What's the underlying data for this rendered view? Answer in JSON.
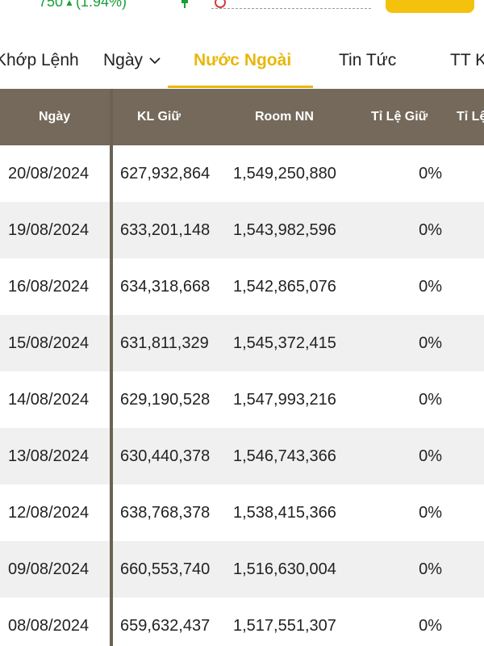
{
  "ticker_bar": {
    "price_change": "750",
    "percent_change": "(1.94%)",
    "up_icon": "triangle-up-icon",
    "colors": {
      "positive": "#1a9e3a",
      "accent": "#f4c20d",
      "header_bg": "#74695a"
    }
  },
  "tabs": [
    {
      "label": "Khớp Lệnh",
      "active": false
    },
    {
      "label": "Ngày",
      "active": false,
      "icon": "chevron-down-icon"
    },
    {
      "label": "Nước Ngoài",
      "active": true
    },
    {
      "label": "Tin Tức",
      "active": false
    },
    {
      "label": "TT K",
      "active": false
    }
  ],
  "table": {
    "columns": [
      "Ngày",
      "KL Giữ",
      "Room NN",
      "Tỉ Lệ Giữ",
      "Tỉ Lệ"
    ],
    "rows": [
      {
        "date": "20/08/2024",
        "kl_giu": "627,932,864",
        "room_nn": "1,549,250,880",
        "ti_le_giu": "0%"
      },
      {
        "date": "19/08/2024",
        "kl_giu": "633,201,148",
        "room_nn": "1,543,982,596",
        "ti_le_giu": "0%"
      },
      {
        "date": "16/08/2024",
        "kl_giu": "634,318,668",
        "room_nn": "1,542,865,076",
        "ti_le_giu": "0%"
      },
      {
        "date": "15/08/2024",
        "kl_giu": "631,811,329",
        "room_nn": "1,545,372,415",
        "ti_le_giu": "0%"
      },
      {
        "date": "14/08/2024",
        "kl_giu": "629,190,528",
        "room_nn": "1,547,993,216",
        "ti_le_giu": "0%"
      },
      {
        "date": "13/08/2024",
        "kl_giu": "630,440,378",
        "room_nn": "1,546,743,366",
        "ti_le_giu": "0%"
      },
      {
        "date": "12/08/2024",
        "kl_giu": "638,768,378",
        "room_nn": "1,538,415,366",
        "ti_le_giu": "0%"
      },
      {
        "date": "09/08/2024",
        "kl_giu": "660,553,740",
        "room_nn": "1,516,630,004",
        "ti_le_giu": "0%"
      },
      {
        "date": "08/08/2024",
        "kl_giu": "659,632,437",
        "room_nn": "1,517,551,307",
        "ti_le_giu": "0%"
      }
    ]
  }
}
